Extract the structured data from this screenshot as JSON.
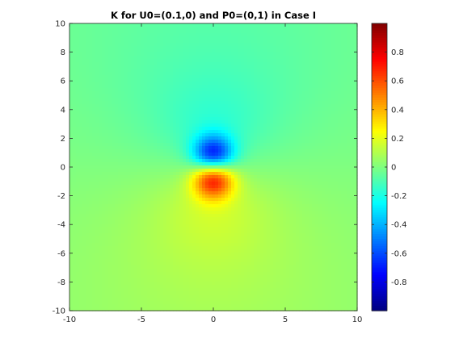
{
  "chart_data": {
    "type": "heatmap",
    "title": "K for U0=(0.1,0) and P0=(0,1) in Case I",
    "xlabel": "",
    "ylabel": "",
    "xlim": [
      -10,
      10
    ],
    "ylim": [
      -10,
      10
    ],
    "x_ticks": [
      "-10",
      "-5",
      "0",
      "5",
      "10"
    ],
    "y_ticks": [
      "10",
      "8",
      "6",
      "4",
      "2",
      "0",
      "-2",
      "-4",
      "-6",
      "-8",
      "-10"
    ],
    "x_tick_values": [
      -10,
      -5,
      0,
      5,
      10
    ],
    "y_tick_values": [
      10,
      8,
      6,
      4,
      2,
      0,
      -2,
      -4,
      -6,
      -8,
      -10
    ],
    "colorbar": {
      "range": [
        -1,
        1
      ],
      "ticks": [
        "0.8",
        "0.6",
        "0.4",
        "0.2",
        "0",
        "-0.2",
        "-0.4",
        "-0.6",
        "-0.8"
      ],
      "tick_values": [
        0.8,
        0.6,
        0.4,
        0.2,
        0,
        -0.2,
        -0.4,
        -0.6,
        -0.8
      ],
      "colormap": "jet"
    },
    "field": {
      "description_of_values": "dipole-like field: minimum near (0,1) (about -1), maximum near (0,-1) (about +1), near 0 far away",
      "min_point": [
        0,
        1
      ],
      "max_point": [
        0,
        -1
      ],
      "min_value": -1,
      "max_value": 1
    },
    "grid": false
  }
}
